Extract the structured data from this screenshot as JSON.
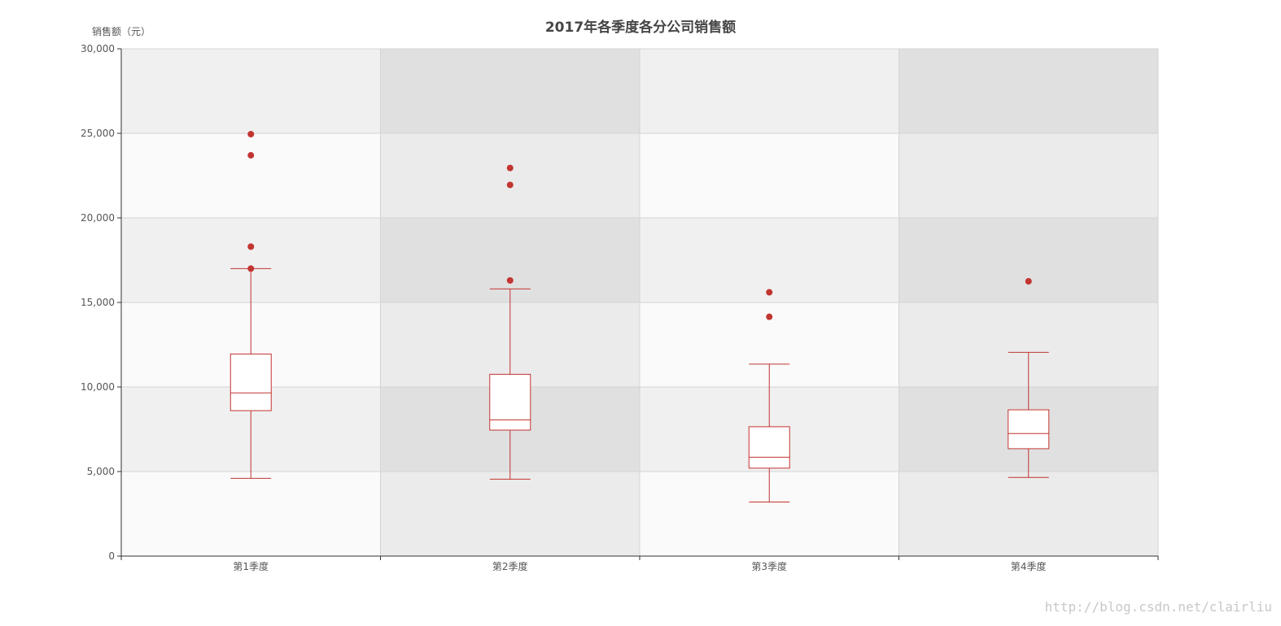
{
  "chart_data": {
    "type": "boxplot",
    "title": "2017年各季度各分公司销售额",
    "ylabel": "销售额（元）",
    "xlabel": "",
    "ylim": [
      0,
      30000
    ],
    "ytick_step": 5000,
    "ytick_labels": [
      "0",
      "5,000",
      "10,000",
      "15,000",
      "20,000",
      "25,000",
      "30,000"
    ],
    "categories": [
      "第1季度",
      "第2季度",
      "第3季度",
      "第4季度"
    ],
    "boxes": [
      {
        "name": "第1季度",
        "min": 4600,
        "q1": 8600,
        "median": 9650,
        "q3": 11950,
        "max": 17000
      },
      {
        "name": "第2季度",
        "min": 4550,
        "q1": 7450,
        "median": 8050,
        "q3": 10750,
        "max": 15800
      },
      {
        "name": "第3季度",
        "min": 3200,
        "q1": 5200,
        "median": 5850,
        "q3": 7650,
        "max": 11350
      },
      {
        "name": "第4季度",
        "min": 4650,
        "q1": 6350,
        "median": 7250,
        "q3": 8650,
        "max": 12050
      }
    ],
    "outliers": [
      {
        "category": "第1季度",
        "value": 24950
      },
      {
        "category": "第1季度",
        "value": 23700
      },
      {
        "category": "第1季度",
        "value": 18300
      },
      {
        "category": "第1季度",
        "value": 17000
      },
      {
        "category": "第2季度",
        "value": 22950
      },
      {
        "category": "第2季度",
        "value": 21950
      },
      {
        "category": "第2季度",
        "value": 16300
      },
      {
        "category": "第3季度",
        "value": 15600
      },
      {
        "category": "第3季度",
        "value": 14150
      },
      {
        "category": "第4季度",
        "value": 16250
      }
    ],
    "grid": true,
    "colors": {
      "box_stroke": "#c23531",
      "outlier": "#c23531",
      "axis_line": "#333333",
      "grid_line": "#d4d4d4",
      "split_area_light": "#fafafa",
      "split_area_dark": "#f0f0f0",
      "split_area_mid": "#ebebeb",
      "split_area_darkest": "#e0e0e0"
    }
  },
  "watermark": "http://blog.csdn.net/clairliu"
}
